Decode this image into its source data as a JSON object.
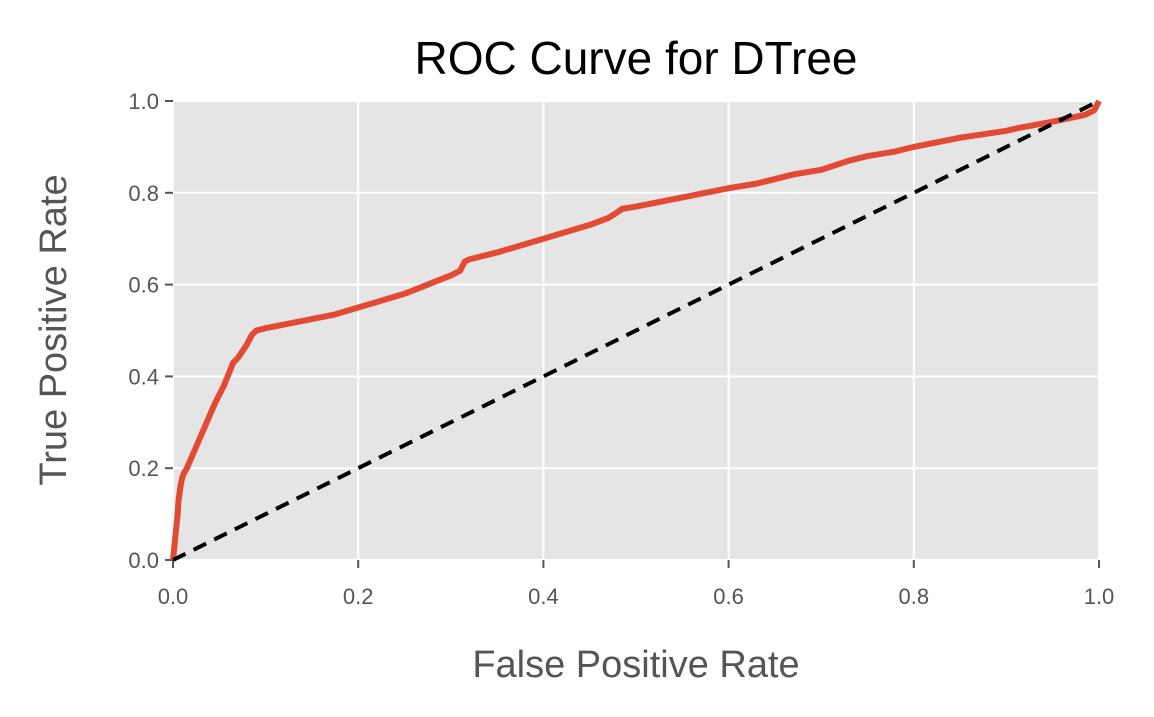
{
  "chart_data": {
    "type": "line",
    "title": "ROC Curve for DTree",
    "xlabel": "False Positive Rate",
    "ylabel": "True Positive Rate",
    "xlim": [
      0.0,
      1.0
    ],
    "ylim": [
      0.0,
      1.0
    ],
    "xticks": [
      "0.0",
      "0.2",
      "0.4",
      "0.6",
      "0.8",
      "1.0"
    ],
    "yticks": [
      "0.0",
      "0.2",
      "0.4",
      "0.6",
      "0.8",
      "1.0"
    ],
    "grid": true,
    "style": "ggplot",
    "series": [
      {
        "color": "#E24A33",
        "line_style": "solid",
        "x": [
          0.0,
          0.005,
          0.006,
          0.008,
          0.01,
          0.012,
          0.015,
          0.03,
          0.045,
          0.055,
          0.063,
          0.065,
          0.07,
          0.08,
          0.085,
          0.09,
          0.1,
          0.15,
          0.175,
          0.2,
          0.25,
          0.3,
          0.31,
          0.315,
          0.32,
          0.35,
          0.4,
          0.45,
          0.47,
          0.478,
          0.485,
          0.5,
          0.55,
          0.6,
          0.63,
          0.65,
          0.67,
          0.7,
          0.73,
          0.75,
          0.765,
          0.78,
          0.8,
          0.85,
          0.9,
          0.91,
          0.95,
          0.985,
          0.995,
          1.0
        ],
        "y": [
          0.0,
          0.1,
          0.13,
          0.16,
          0.18,
          0.19,
          0.2,
          0.27,
          0.34,
          0.38,
          0.42,
          0.43,
          0.44,
          0.47,
          0.49,
          0.5,
          0.505,
          0.525,
          0.535,
          0.55,
          0.58,
          0.62,
          0.63,
          0.65,
          0.655,
          0.67,
          0.7,
          0.73,
          0.745,
          0.755,
          0.765,
          0.77,
          0.79,
          0.81,
          0.82,
          0.83,
          0.84,
          0.85,
          0.87,
          0.88,
          0.885,
          0.89,
          0.9,
          0.92,
          0.935,
          0.94,
          0.955,
          0.97,
          0.98,
          1.0
        ]
      },
      {
        "color": "#000000",
        "line_style": "dashed",
        "x": [
          0.0,
          1.0
        ],
        "y": [
          0.0,
          1.0
        ]
      }
    ]
  }
}
